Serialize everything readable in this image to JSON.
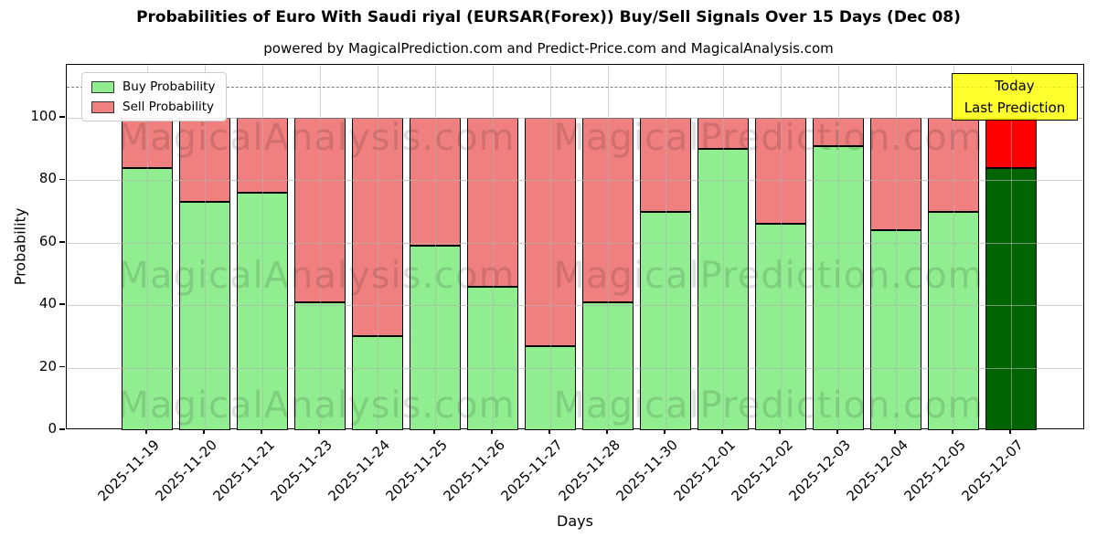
{
  "title": "Probabilities of Euro With Saudi riyal (EURSAR(Forex)) Buy/Sell Signals Over 15 Days (Dec 08)",
  "subtitle": "powered by MagicalPrediction.com and Predict-Price.com and MagicalAnalysis.com",
  "legend": {
    "items": [
      {
        "label": "Buy Probability",
        "color": "#90ee90"
      },
      {
        "label": "Sell Probability",
        "color": "#f08080"
      }
    ]
  },
  "annotation_box": {
    "line1": "Today",
    "line2": "Last Prediction",
    "bg_color": "#ffff00"
  },
  "watermark": {
    "texts": [
      "MagicalAnalysis.com",
      "MagicalPrediction.com"
    ]
  },
  "chart_data": {
    "type": "bar",
    "stacked": true,
    "title": "Probabilities of Euro With Saudi riyal (EURSAR(Forex)) Buy/Sell Signals Over 15 Days (Dec 08)",
    "xlabel": "Days",
    "ylabel": "Probability",
    "categories": [
      "2025-11-19",
      "2025-11-20",
      "2025-11-21",
      "2025-11-23",
      "2025-11-24",
      "2025-11-25",
      "2025-11-26",
      "2025-11-27",
      "2025-11-28",
      "2025-11-30",
      "2025-12-01",
      "2025-12-02",
      "2025-12-03",
      "2025-12-04",
      "2025-12-05",
      "2025-12-07"
    ],
    "series": [
      {
        "name": "Buy Probability",
        "color": "#90ee90",
        "highlight_color": "#006400",
        "values": [
          84,
          73,
          76,
          41,
          30,
          59,
          46,
          27,
          41,
          70,
          90,
          66,
          91,
          64,
          70,
          84
        ]
      },
      {
        "name": "Sell Probability",
        "color": "#f08080",
        "highlight_color": "#ff0000",
        "values": [
          16,
          27,
          24,
          59,
          70,
          41,
          54,
          73,
          59,
          30,
          10,
          34,
          9,
          36,
          30,
          16
        ]
      }
    ],
    "highlight_index": 15,
    "yticks": [
      0,
      20,
      40,
      60,
      80,
      100
    ],
    "ylim": [
      0,
      117
    ],
    "dashed_line_y": 110,
    "grid": true,
    "legend_position": "upper left"
  }
}
